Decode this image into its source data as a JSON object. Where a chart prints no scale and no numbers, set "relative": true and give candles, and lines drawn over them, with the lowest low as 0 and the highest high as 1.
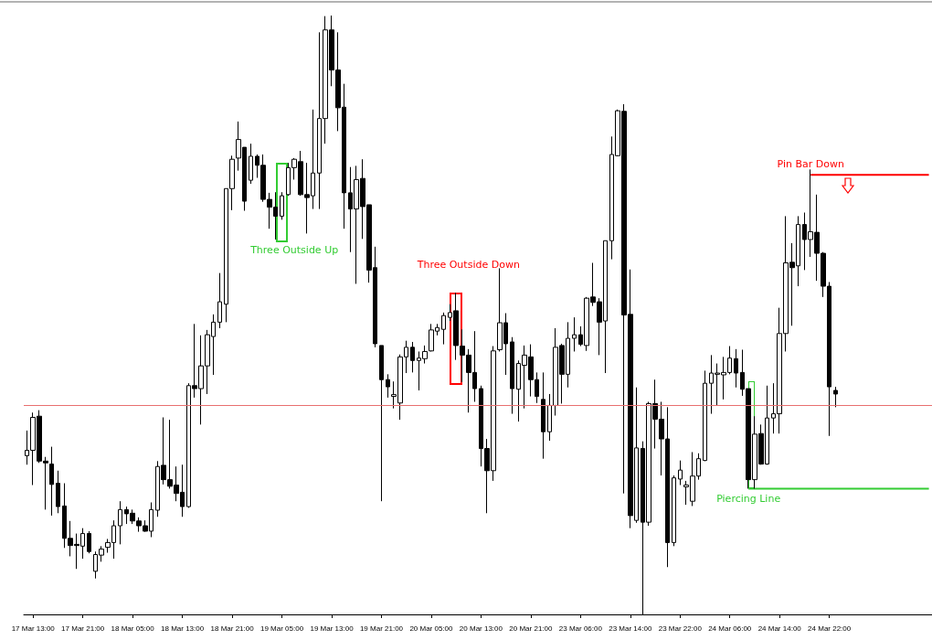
{
  "chart_data": {
    "type": "candlestick",
    "relative": true,
    "categories": [
      null,
      "17 Mar 13:00",
      null,
      null,
      null,
      null,
      null,
      null,
      null,
      "17 Mar 21:00",
      null,
      null,
      null,
      null,
      null,
      null,
      null,
      "18 Mar 05:00",
      null,
      null,
      null,
      null,
      null,
      null,
      null,
      "18 Mar 13:00",
      null,
      null,
      null,
      null,
      null,
      null,
      null,
      "18 Mar 21:00",
      null,
      null,
      null,
      null,
      null,
      null,
      null,
      "19 Mar 05:00",
      null,
      null,
      null,
      null,
      null,
      null,
      null,
      "19 Mar 13:00",
      null,
      null,
      null,
      null,
      null,
      null,
      null,
      "19 Mar 21:00",
      null,
      null,
      null,
      null,
      null,
      null,
      null,
      "20 Mar 05:00",
      null,
      null,
      null,
      null,
      null,
      null,
      null,
      "20 Mar 13:00",
      null,
      null,
      null,
      null,
      null,
      null,
      null,
      "20 Mar 21:00",
      null,
      null,
      null,
      null,
      null,
      null,
      null,
      "23 Mar 06:00",
      null,
      null,
      null,
      null,
      null,
      null,
      null,
      "23 Mar 14:00",
      null,
      null,
      null,
      null,
      null,
      null,
      null,
      "23 Mar 22:00",
      null,
      null,
      null,
      null,
      null,
      null,
      null,
      "24 Mar 06:00",
      null,
      null,
      null,
      null,
      null,
      null,
      null,
      "24 Mar 14:00",
      null,
      null,
      null,
      null,
      null,
      null,
      null,
      "24 Mar 22:00",
      null,
      null,
      null,
      null,
      null,
      null,
      null,
      null,
      null,
      null,
      null,
      null,
      null,
      null,
      null,
      null
    ],
    "ohlc": [
      [
        0.265,
        0.307,
        0.25,
        0.274
      ],
      [
        0.274,
        0.337,
        0.216,
        0.329
      ],
      [
        0.331,
        0.341,
        0.253,
        0.256
      ],
      [
        0.256,
        0.263,
        0.175,
        0.253
      ],
      [
        0.251,
        0.28,
        0.165,
        0.217
      ],
      [
        0.219,
        0.24,
        0.169,
        0.18
      ],
      [
        0.181,
        0.219,
        0.111,
        0.127
      ],
      [
        0.127,
        0.156,
        0.097,
        0.115
      ],
      [
        0.117,
        0.135,
        0.076,
        0.115
      ],
      [
        0.114,
        0.144,
        0.093,
        0.135
      ],
      [
        0.135,
        0.139,
        0.102,
        0.105
      ],
      [
        0.072,
        0.105,
        0.06,
        0.1
      ],
      [
        0.099,
        0.114,
        0.088,
        0.109
      ],
      [
        0.112,
        0.126,
        0.103,
        0.12
      ],
      [
        0.12,
        0.157,
        0.093,
        0.148
      ],
      [
        0.148,
        0.189,
        0.117,
        0.175
      ],
      [
        0.175,
        0.18,
        0.151,
        0.168
      ],
      [
        0.169,
        0.175,
        0.151,
        0.156
      ],
      [
        0.156,
        0.162,
        0.138,
        0.148
      ],
      [
        0.148,
        0.157,
        0.138,
        0.139
      ],
      [
        0.139,
        0.187,
        0.129,
        0.175
      ],
      [
        0.174,
        0.256,
        0.163,
        0.247
      ],
      [
        0.249,
        0.329,
        0.217,
        0.225
      ],
      [
        0.225,
        0.325,
        0.21,
        0.214
      ],
      [
        0.216,
        0.247,
        0.189,
        0.202
      ],
      [
        0.204,
        0.25,
        0.163,
        0.18
      ],
      [
        0.18,
        0.386,
        0.178,
        0.382
      ],
      [
        0.382,
        0.485,
        0.362,
        0.377
      ],
      [
        0.377,
        0.466,
        0.317,
        0.415
      ],
      [
        0.415,
        0.475,
        0.368,
        0.467
      ],
      [
        0.464,
        0.501,
        0.4,
        0.488
      ],
      [
        0.488,
        0.57,
        0.478,
        0.522
      ],
      [
        0.518,
        0.711,
        0.488,
        0.711
      ],
      [
        0.711,
        0.766,
        0.675,
        0.76
      ],
      [
        0.762,
        0.823,
        0.741,
        0.793
      ],
      [
        0.78,
        0.78,
        0.674,
        0.69
      ],
      [
        0.725,
        0.786,
        0.719,
        0.765
      ],
      [
        0.765,
        0.768,
        0.729,
        0.75
      ],
      [
        0.75,
        0.768,
        0.689,
        0.693
      ],
      [
        0.693,
        0.704,
        0.644,
        0.68
      ],
      [
        0.68,
        0.705,
        0.626,
        0.665
      ],
      [
        0.665,
        0.705,
        0.659,
        0.699
      ],
      [
        0.701,
        0.754,
        0.699,
        0.746
      ],
      [
        0.746,
        0.762,
        0.726,
        0.76
      ],
      [
        0.756,
        0.774,
        0.699,
        0.701
      ],
      [
        0.701,
        0.754,
        0.636,
        0.696
      ],
      [
        0.699,
        0.843,
        0.677,
        0.737
      ],
      [
        0.737,
        0.972,
        0.677,
        0.828
      ],
      [
        0.828,
        0.999,
        0.786,
        0.976
      ],
      [
        0.976,
        1,
        0.882,
        0.909
      ],
      [
        0.909,
        0.972,
        0.807,
        0.846
      ],
      [
        0.847,
        0.886,
        0.644,
        0.704
      ],
      [
        0.704,
        0.747,
        0.605,
        0.677
      ],
      [
        0.677,
        0.749,
        0.552,
        0.726
      ],
      [
        0.728,
        0.76,
        0.627,
        0.681
      ],
      [
        0.684,
        0.684,
        0.554,
        0.575
      ],
      [
        0.579,
        0.614,
        0.446,
        0.452
      ],
      [
        0.449,
        0.449,
        0.189,
        0.392
      ],
      [
        0.392,
        0.401,
        0.362,
        0.38
      ],
      [
        0.364,
        0.389,
        0.344,
        0.367
      ],
      [
        0.353,
        0.434,
        0.325,
        0.43
      ],
      [
        0.43,
        0.457,
        0.403,
        0.446
      ],
      [
        0.446,
        0.455,
        0.404,
        0.424
      ],
      [
        0.424,
        0.439,
        0.374,
        0.428
      ],
      [
        0.427,
        0.449,
        0.419,
        0.439
      ],
      [
        0.44,
        0.485,
        0.439,
        0.475
      ],
      [
        0.473,
        0.485,
        0.466,
        0.479
      ],
      [
        0.476,
        0.504,
        0.451,
        0.499
      ],
      [
        0.496,
        0.518,
        0.49,
        0.504
      ],
      [
        0.507,
        0.537,
        0.425,
        0.449
      ],
      [
        0.448,
        0.476,
        0.388,
        0.433
      ],
      [
        0.433,
        0.443,
        0.337,
        0.404
      ],
      [
        0.404,
        0.473,
        0.355,
        0.377
      ],
      [
        0.377,
        0.382,
        0.247,
        0.277
      ],
      [
        0.277,
        0.293,
        0.169,
        0.24
      ],
      [
        0.24,
        0.448,
        0.223,
        0.44
      ],
      [
        0.442,
        0.578,
        0.439,
        0.487
      ],
      [
        0.487,
        0.503,
        0.4,
        0.452
      ],
      [
        0.455,
        0.463,
        0.335,
        0.377
      ],
      [
        0.376,
        0.424,
        0.322,
        0.419
      ],
      [
        0.416,
        0.449,
        0.344,
        0.433
      ],
      [
        0.43,
        0.451,
        0.364,
        0.392
      ],
      [
        0.392,
        0.404,
        0.353,
        0.364
      ],
      [
        0.359,
        0.404,
        0.26,
        0.305
      ],
      [
        0.305,
        0.368,
        0.29,
        0.349
      ],
      [
        0.349,
        0.478,
        0.332,
        0.446
      ],
      [
        0.449,
        0.452,
        0.352,
        0.401
      ],
      [
        0.401,
        0.488,
        0.379,
        0.461
      ],
      [
        0.461,
        0.496,
        0.439,
        0.467
      ],
      [
        0.467,
        0.481,
        0.448,
        0.451
      ],
      [
        0.449,
        0.53,
        0.44,
        0.528
      ],
      [
        0.53,
        0.587,
        0.515,
        0.521
      ],
      [
        0.522,
        0.528,
        0.433,
        0.488
      ],
      [
        0.49,
        0.624,
        0.403,
        0.624
      ],
      [
        0.624,
        0.798,
        0.593,
        0.768
      ],
      [
        0.766,
        0.843,
        0.765,
        0.841
      ],
      [
        0.84,
        0.852,
        0.202,
        0.5
      ],
      [
        0.501,
        0.576,
        0.144,
        0.165
      ],
      [
        0.157,
        0.379,
        0.153,
        0.278
      ],
      [
        0.277,
        0.289,
        0,
        0.154
      ],
      [
        0.154,
        0.355,
        0.148,
        0.352
      ],
      [
        0.352,
        0.392,
        0.277,
        0.326
      ],
      [
        0.326,
        0.355,
        0.232,
        0.293
      ],
      [
        0.293,
        0.346,
        0.079,
        0.12
      ],
      [
        0.12,
        0.232,
        0.114,
        0.228
      ],
      [
        0.226,
        0.257,
        0.216,
        0.241
      ],
      [
        0.213,
        0.223,
        0.183,
        0.216
      ],
      [
        0.189,
        0.271,
        0.181,
        0.231
      ],
      [
        0.231,
        0.269,
        0.225,
        0.26
      ],
      [
        0.257,
        0.407,
        0.256,
        0.386
      ],
      [
        0.386,
        0.433,
        0.335,
        0.403
      ],
      [
        0.401,
        0.419,
        0.349,
        0.403
      ],
      [
        0.4,
        0.43,
        0.359,
        0.404
      ],
      [
        0.404,
        0.448,
        0.401,
        0.428
      ],
      [
        0.427,
        0.443,
        0.379,
        0.403
      ],
      [
        0.404,
        0.442,
        0.365,
        0.376
      ],
      [
        0.377,
        0.377,
        0.21,
        0.225
      ],
      [
        0.225,
        0.331,
        0.21,
        0.301
      ],
      [
        0.302,
        0.317,
        0.25,
        0.251
      ],
      [
        0.251,
        0.382,
        0.25,
        0.328
      ],
      [
        0.328,
        0.386,
        0.302,
        0.335
      ],
      [
        0.335,
        0.512,
        0.302,
        0.469
      ],
      [
        0.469,
        0.665,
        0.439,
        0.587
      ],
      [
        0.588,
        0.62,
        0.482,
        0.579
      ],
      [
        0.582,
        0.665,
        0.548,
        0.651
      ],
      [
        0.651,
        0.671,
        0.575,
        0.626
      ],
      [
        0.626,
        0.743,
        0.597,
        0.639
      ],
      [
        0.638,
        0.701,
        0.557,
        0.603
      ],
      [
        0.603,
        0.605,
        0.53,
        0.548
      ],
      [
        0.548,
        0.555,
        0.298,
        0.38
      ],
      [
        0.374,
        0.38,
        0.346,
        0.368
      ],
      null,
      null,
      null,
      null,
      null,
      null,
      null,
      null,
      null,
      null,
      null,
      null,
      null,
      null,
      null
    ],
    "series": [
      {
        "type": "line",
        "name": "Pin Bar Down",
        "color": "#ff0000",
        "values": [
          null,
          null,
          null,
          null,
          null,
          null,
          null,
          null,
          null,
          null,
          null,
          null,
          null,
          null,
          null,
          null,
          null,
          null,
          null,
          null,
          null,
          null,
          null,
          null,
          null,
          null,
          null,
          null,
          null,
          null,
          null,
          null,
          null,
          null,
          null,
          null,
          null,
          null,
          null,
          null,
          null,
          null,
          null,
          null,
          null,
          null,
          null,
          null,
          null,
          null,
          null,
          null,
          null,
          null,
          null,
          null,
          null,
          null,
          null,
          null,
          null,
          null,
          null,
          null,
          null,
          null,
          null,
          null,
          null,
          null,
          null,
          null,
          null,
          null,
          null,
          null,
          null,
          null,
          null,
          null,
          null,
          null,
          null,
          null,
          null,
          null,
          null,
          null,
          null,
          null,
          null,
          null,
          null,
          null,
          null,
          null,
          null,
          null,
          null,
          null,
          null,
          null,
          null,
          null,
          null,
          null,
          null,
          null,
          null,
          null,
          null,
          null,
          null,
          null,
          null,
          null,
          null,
          null,
          null,
          null,
          null,
          null,
          null,
          null,
          null,
          null,
          0.734,
          0.734,
          0.734,
          0.734,
          0.734,
          0.734,
          0.734,
          0.734,
          0.734,
          0.734,
          0.734,
          0.734,
          0.734,
          0.734,
          0.734,
          0.734,
          0.734,
          0.734,
          0.734,
          0.734
        ]
      },
      {
        "type": "line",
        "name": "Piercing Line",
        "color": "#33cc33",
        "values": [
          null,
          null,
          null,
          null,
          null,
          null,
          null,
          null,
          null,
          null,
          null,
          null,
          null,
          null,
          null,
          null,
          null,
          null,
          null,
          null,
          null,
          null,
          null,
          null,
          null,
          null,
          null,
          null,
          null,
          null,
          null,
          null,
          null,
          null,
          null,
          null,
          null,
          null,
          null,
          null,
          null,
          null,
          null,
          null,
          null,
          null,
          null,
          null,
          null,
          null,
          null,
          null,
          null,
          null,
          null,
          null,
          null,
          null,
          null,
          null,
          null,
          null,
          null,
          null,
          null,
          null,
          null,
          null,
          null,
          null,
          null,
          null,
          null,
          null,
          null,
          null,
          null,
          null,
          null,
          null,
          null,
          null,
          null,
          null,
          null,
          null,
          null,
          null,
          null,
          null,
          null,
          null,
          null,
          null,
          null,
          null,
          null,
          null,
          null,
          null,
          null,
          null,
          null,
          null,
          null,
          null,
          null,
          null,
          null,
          null,
          null,
          null,
          null,
          null,
          null,
          null,
          0.21,
          0.21,
          0.21,
          0.21,
          0.21,
          0.21,
          0.21,
          0.21,
          0.21,
          0.21,
          0.21,
          0.21,
          0.21,
          0.21,
          0.21,
          0.21,
          0.21,
          0.21,
          0.21,
          0.21,
          0.21,
          0.21,
          0.21,
          0.21,
          0.21,
          0.21,
          0.21,
          0.21,
          0.21,
          0.21
        ]
      }
    ],
    "ref_lines": [
      {
        "axis": "y",
        "value": 0.347,
        "color": "#e87070"
      }
    ],
    "annotations": [
      "Three Outside Up",
      "Three Outside Down"
    ]
  }
}
